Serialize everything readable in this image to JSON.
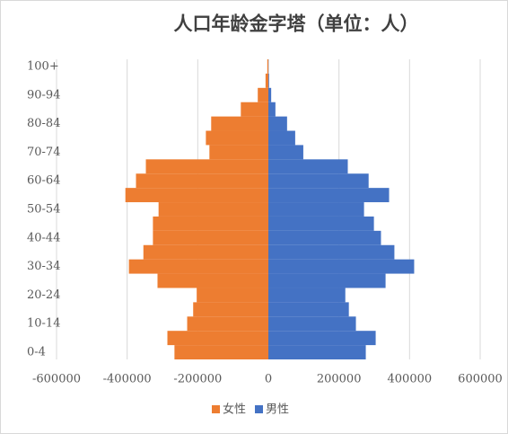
{
  "chart_data": {
    "type": "bar",
    "orientation": "horizontal",
    "title": "人口年龄金字塔（单位：人）",
    "categories": [
      "0-4",
      null,
      "10-14",
      null,
      "20-24",
      null,
      "30-34",
      null,
      "40-44",
      null,
      "50-54",
      null,
      "60-64",
      null,
      "70-74",
      null,
      "80-84",
      null,
      "90-94",
      null,
      "100+"
    ],
    "series": [
      {
        "name": "女性",
        "color": "#ed7d31",
        "values": [
          -266000,
          -286000,
          -230000,
          -213000,
          -203000,
          -314000,
          -395000,
          -354000,
          -327000,
          -327000,
          -311000,
          -405000,
          -375000,
          -347000,
          -167000,
          -177000,
          -162000,
          -78000,
          -30000,
          -8000,
          -3000
        ]
      },
      {
        "name": "男性",
        "color": "#4472c4",
        "values": [
          276000,
          304000,
          248000,
          228000,
          218000,
          332000,
          413000,
          357000,
          319000,
          299000,
          271000,
          342000,
          284000,
          225000,
          99000,
          76000,
          53000,
          20000,
          8000,
          2000,
          500
        ]
      }
    ],
    "xlim": [
      -600000,
      600000
    ],
    "xticks": [
      -600000,
      -400000,
      -200000,
      0,
      200000,
      400000,
      600000
    ],
    "grid": true,
    "legend": "bottom"
  }
}
